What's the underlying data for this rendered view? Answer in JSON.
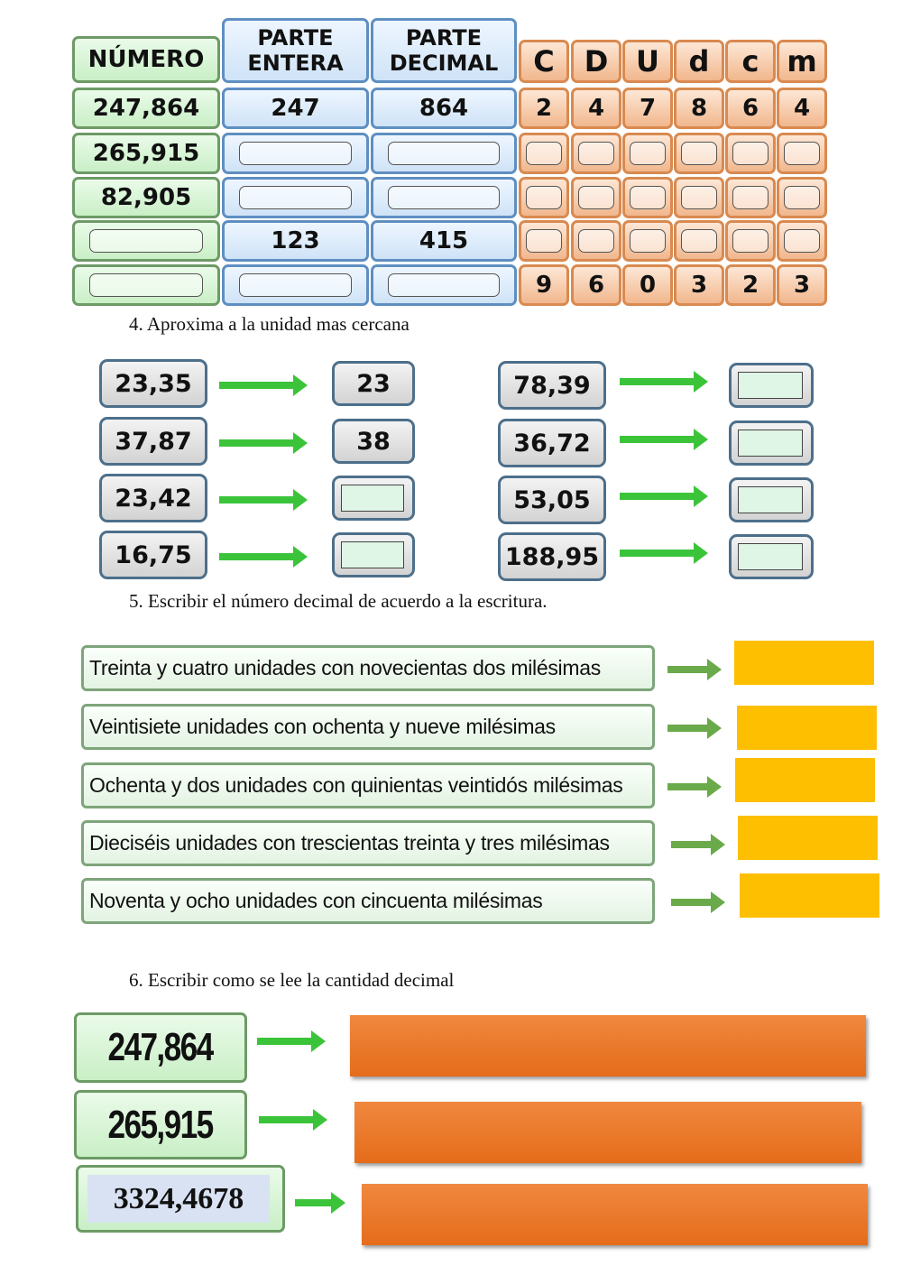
{
  "table": {
    "headers": {
      "numero": "NÚMERO",
      "entera": "PARTE ENTERA",
      "decimal": "PARTE DECIMAL",
      "digits": [
        "C",
        "D",
        "U",
        "d",
        "c",
        "m"
      ]
    },
    "rows": [
      {
        "numero": "247,864",
        "entera": "247",
        "decimal": "864",
        "digits": [
          "2",
          "4",
          "7",
          "8",
          "6",
          "4"
        ]
      },
      {
        "numero": "265,915",
        "entera": "",
        "decimal": "",
        "digits": [
          "",
          "",
          "",
          "",
          "",
          ""
        ]
      },
      {
        "numero": "82,905",
        "entera": "",
        "decimal": "",
        "digits": [
          "",
          "",
          "",
          "",
          "",
          ""
        ]
      },
      {
        "numero": "",
        "entera": "123",
        "decimal": "415",
        "digits": [
          "",
          "",
          "",
          "",
          "",
          ""
        ]
      },
      {
        "numero": "",
        "entera": "",
        "decimal": "",
        "digits": [
          "9",
          "6",
          "0",
          "3",
          "2",
          "3"
        ]
      }
    ]
  },
  "section4": {
    "title": "4.  Aproxima a la unidad mas cercana",
    "left": [
      {
        "value": "23,35",
        "answer": "23"
      },
      {
        "value": "37,87",
        "answer": "38"
      },
      {
        "value": "23,42",
        "answer": ""
      },
      {
        "value": "16,75",
        "answer": ""
      }
    ],
    "right": [
      {
        "value": "78,39",
        "answer": ""
      },
      {
        "value": "36,72",
        "answer": ""
      },
      {
        "value": "53,05",
        "answer": ""
      },
      {
        "value": "188,95",
        "answer": ""
      }
    ]
  },
  "section5": {
    "title": "5.  Escribir el número decimal de acuerdo a la escritura.",
    "items": [
      "Treinta y cuatro unidades con novecientas dos milésimas",
      "Veintisiete unidades con ochenta y nueve milésimas",
      "Ochenta y dos unidades con quinientas veintidós milésimas",
      "Dieciséis unidades con trescientas treinta y tres milésimas",
      "Noventa y ocho unidades con cincuenta milésimas"
    ],
    "answer_color": "#fdbf00"
  },
  "section6": {
    "title": "6.  Escribir como se lee la cantidad decimal",
    "items": [
      "247,864",
      "265,915",
      "3324,4678"
    ],
    "answer_color": "#e8762a"
  },
  "colors": {
    "arrow": "#3bc43a",
    "arrow5": "#6aaa4a"
  }
}
